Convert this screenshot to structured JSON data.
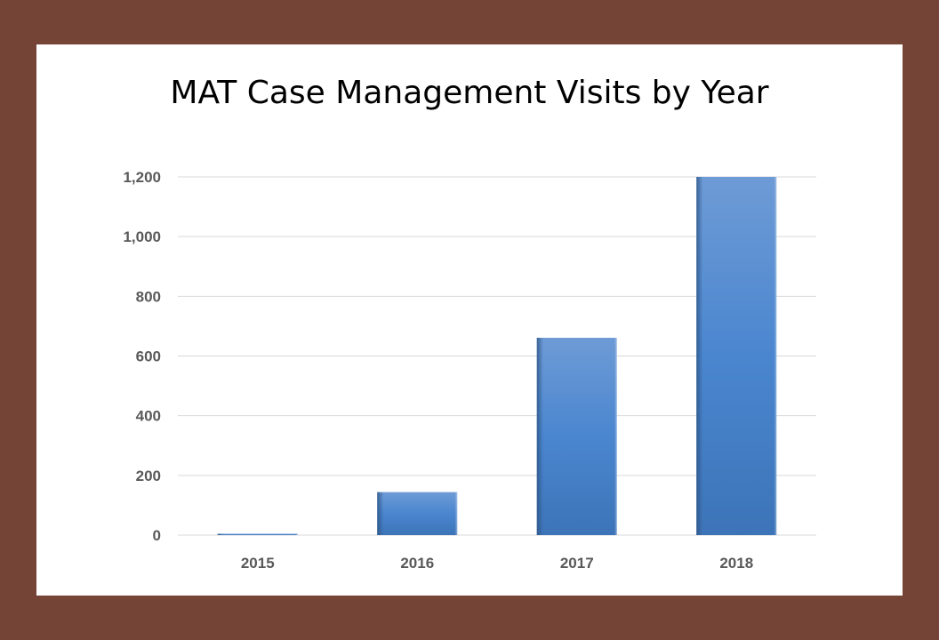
{
  "chart_data": {
    "type": "bar",
    "title": "MAT Case Management Visits by Year",
    "xlabel": "",
    "ylabel": "",
    "categories": [
      "2015",
      "2016",
      "2017",
      "2018"
    ],
    "values": [
      2,
      144,
      661,
      1200
    ],
    "ylim": [
      0,
      1200
    ],
    "yticks": [
      0,
      200,
      400,
      600,
      800,
      1000,
      1200
    ],
    "ytick_labels": [
      "0",
      "200",
      "400",
      "600",
      "800",
      "1,000",
      "1,200"
    ],
    "grid": true,
    "bar_color": "#4a86cf",
    "background": "#744436"
  }
}
